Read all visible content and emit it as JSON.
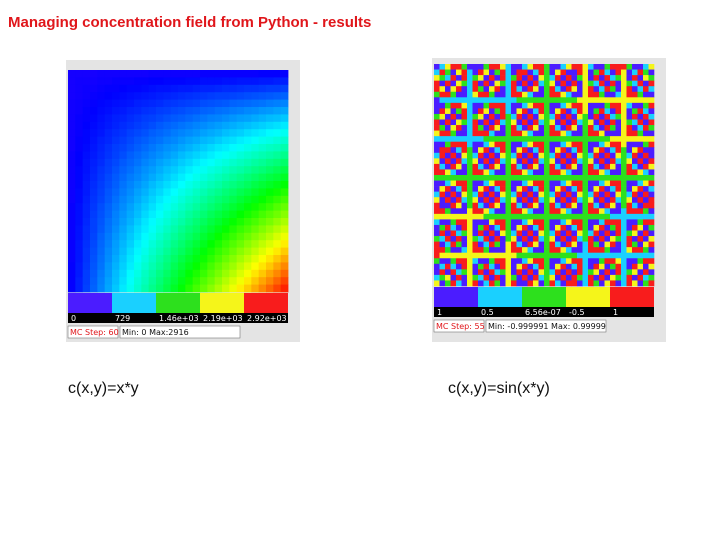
{
  "header": {
    "title": "Managing concentration field from Python - results"
  },
  "panels": [
    {
      "caption": "c(x,y)=x*y",
      "colorbar_labels": [
        "0",
        "729",
        "1.46e+03",
        "2.19e+03",
        "2.92e+03"
      ],
      "status": {
        "step": "MC Step: 60",
        "range": "Min: 0 Max:2916"
      }
    },
    {
      "caption": "c(x,y)=sin(x*y)",
      "colorbar_labels": [
        "1",
        "0.5",
        "6.56e-07",
        "-0.5",
        "1"
      ],
      "status": {
        "step": "MC Step: 55",
        "range": "Min: -0.999991 Max: 0.99999"
      }
    }
  ]
}
